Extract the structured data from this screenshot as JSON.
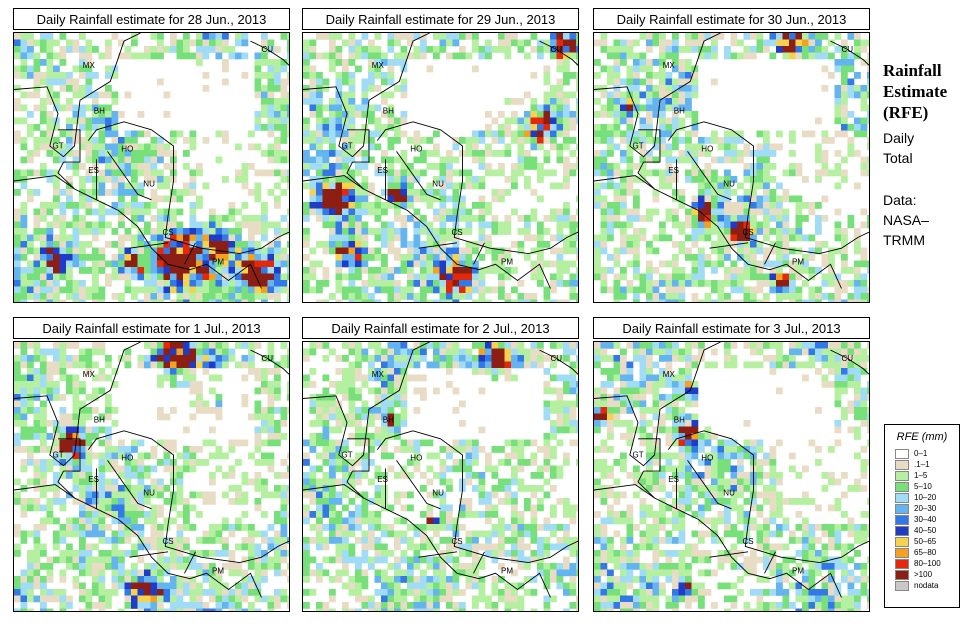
{
  "panels": [
    {
      "title": "Daily Rainfall estimate for  28 Jun., 2013",
      "seed": 11,
      "hot": [
        [
          0.58,
          0.82,
          0.1
        ],
        [
          0.86,
          0.87,
          0.08
        ],
        [
          0.15,
          0.82,
          0.05
        ],
        [
          0.4,
          0.83,
          0.05
        ],
        [
          0.73,
          0.77,
          0.04
        ]
      ]
    },
    {
      "title": "Daily Rainfall estimate for  29 Jun., 2013",
      "seed": 23,
      "hot": [
        [
          0.83,
          0.32,
          0.07
        ],
        [
          0.1,
          0.6,
          0.07
        ],
        [
          0.15,
          0.78,
          0.06
        ],
        [
          0.54,
          0.88,
          0.06
        ],
        [
          0.92,
          0.03,
          0.05
        ],
        [
          0.33,
          0.58,
          0.04
        ]
      ]
    },
    {
      "title": "Daily Rainfall estimate for  30 Jun., 2013",
      "seed": 37,
      "hot": [
        [
          0.38,
          0.65,
          0.05
        ],
        [
          0.52,
          0.72,
          0.04
        ],
        [
          0.66,
          0.9,
          0.03
        ],
        [
          0.7,
          0.02,
          0.05
        ],
        [
          0.11,
          0.27,
          0.03
        ]
      ]
    },
    {
      "title": "Daily Rainfall estimate for  1 Jul., 2013",
      "seed": 49,
      "hot": [
        [
          0.58,
          0.05,
          0.08
        ],
        [
          0.2,
          0.36,
          0.05
        ],
        [
          0.46,
          0.9,
          0.06
        ],
        [
          0.72,
          0.2,
          0.02
        ]
      ]
    },
    {
      "title": "Daily Rainfall estimate for  2 Jul., 2013",
      "seed": 61,
      "hot": [
        [
          0.69,
          0.06,
          0.08
        ],
        [
          0.3,
          0.28,
          0.03
        ],
        [
          0.45,
          0.65,
          0.02
        ]
      ]
    },
    {
      "title": "Daily Rainfall estimate for  3 Jul., 2013",
      "seed": 73,
      "hot": [
        [
          0.33,
          0.33,
          0.04
        ],
        [
          0.32,
          0.15,
          0.03
        ],
        [
          0.31,
          0.9,
          0.03
        ],
        [
          0.02,
          0.25,
          0.03
        ]
      ]
    }
  ],
  "country_labels": {
    "mx": "MX",
    "cu": "CU",
    "bh": "BH",
    "gt": "GT",
    "ho": "HO",
    "es": "ES",
    "nu": "NU",
    "cs": "CS",
    "pm": "PM"
  },
  "side": {
    "title_line1": "Rainfall",
    "title_line2": "Estimate",
    "title_line3": "(RFE)",
    "daily": "Daily",
    "total": "Total",
    "data_label": "Data:",
    "source_line1": "NASA–",
    "source_line2": "TRMM"
  },
  "legend": {
    "title": "RFE (mm)",
    "items": [
      {
        "label": "0–1",
        "color": "#ffffff"
      },
      {
        "label": ".1–1",
        "color": "#e8dcc4"
      },
      {
        "label": "1–5",
        "color": "#b4f0a0"
      },
      {
        "label": "5–10",
        "color": "#78e07a"
      },
      {
        "label": "10–20",
        "color": "#a0dcf5"
      },
      {
        "label": "20–30",
        "color": "#64b4f0"
      },
      {
        "label": "30–40",
        "color": "#3278e6"
      },
      {
        "label": "40–50",
        "color": "#1e3cc8"
      },
      {
        "label": "50–65",
        "color": "#f5d250"
      },
      {
        "label": "65–80",
        "color": "#f5a01e"
      },
      {
        "label": "80–100",
        "color": "#e6280a"
      },
      {
        "label": ">100",
        "color": "#8c1e14"
      },
      {
        "label": "nodata",
        "color": "#c8c8c8"
      }
    ]
  }
}
